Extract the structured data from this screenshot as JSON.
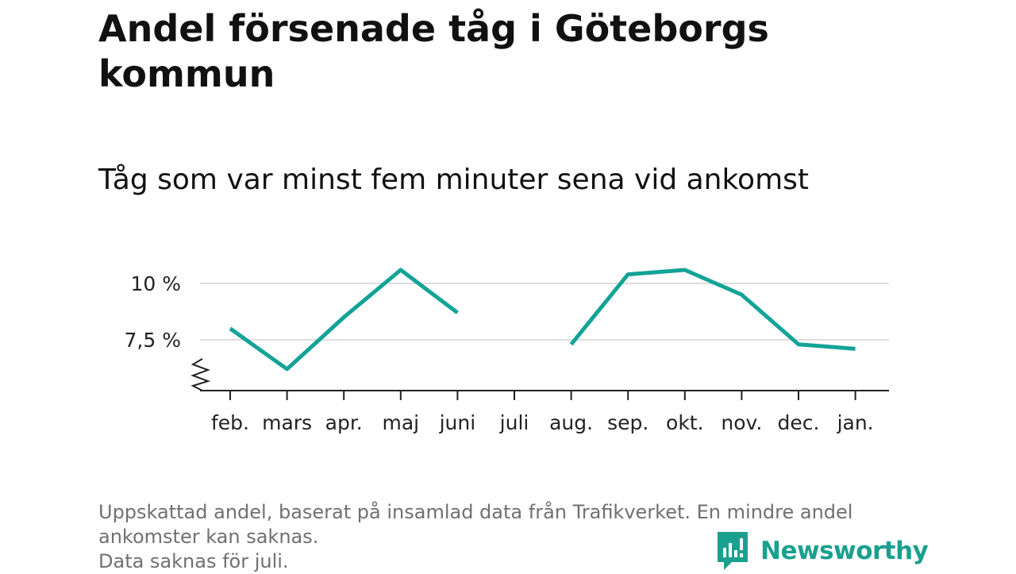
{
  "title": "Andel försenade tåg i Göteborgs kommun",
  "subtitle": "Tåg som var minst fem minuter sena vid ankomst",
  "footnote": {
    "lines": [
      "Uppskattad andel, baserat på insamlad data från Trafikverket. En mindre andel",
      "ankomster kan saknas.",
      "Data saknas för juli."
    ]
  },
  "brand": {
    "name": "Newsworthy",
    "icon": "newsworthy-logo-icon",
    "color": "#1aa08f"
  },
  "colors": {
    "line": "#13a398",
    "grid": "#dddddd",
    "axis": "#222222"
  },
  "chart_data": {
    "type": "line",
    "categories": [
      "feb.",
      "mars",
      "apr.",
      "maj",
      "juni",
      "juli",
      "aug.",
      "sep.",
      "okt.",
      "nov.",
      "dec.",
      "jan."
    ],
    "series": [
      {
        "values": [
          8.0,
          6.2,
          8.5,
          10.6,
          8.7,
          null,
          7.3,
          10.4,
          10.6,
          9.5,
          7.3,
          7.1
        ]
      }
    ],
    "y_ticks": [
      {
        "value": 7.5,
        "label": "7,5 %"
      },
      {
        "value": 10,
        "label": "10 %"
      }
    ],
    "ylim": [
      5.2,
      11.4
    ],
    "y_axis_break": true,
    "grid": true,
    "xlabel": "",
    "ylabel": ""
  }
}
